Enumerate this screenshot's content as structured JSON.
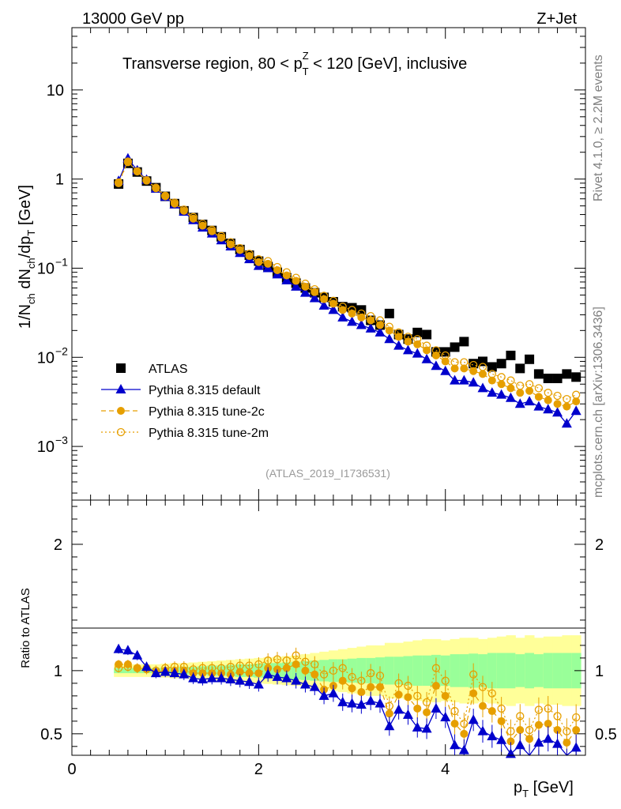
{
  "header": {
    "energy_label": "13000 GeV pp",
    "process_label": "Z+Jet",
    "plot_title": "Transverse region, 80 < p",
    "plot_title_sup": "Z",
    "plot_title_sub": "T",
    "plot_title_rest": " < 120 [GeV], inclusive"
  },
  "side_labels": {
    "rivet": "Rivet 4.1.0, ≥ 2.2M events",
    "mcplots": "mcplots.cern.ch [arXiv:1306.3436]"
  },
  "watermark": "(ATLAS_2019_I1736531)",
  "axes": {
    "ylabel_main": "1/N",
    "ylabel_main_sub1": "ch",
    "ylabel_main_mid": " dN",
    "ylabel_main_sub2": "ch",
    "ylabel_main_mid2": "/dp",
    "ylabel_main_sub3": "T",
    "ylabel_main_end": " [GeV]",
    "ylabel_ratio": "Ratio to ATLAS",
    "xlabel": "p",
    "xlabel_sub": "T",
    "xlabel_end": " [GeV]"
  },
  "colors": {
    "atlas": "#000000",
    "default": "#0000cc",
    "tune2c": "#e69f00",
    "tune2m": "#e69f00",
    "band_inner": "#99ff99",
    "band_outer": "#ffff99"
  },
  "chart_data": {
    "type": "scatter",
    "title": "Transverse region, 80 < pT(Z) < 120 [GeV], inclusive",
    "xlabel": "pT [GeV]",
    "ylabel": "1/Nch dNch/dpT [GeV]",
    "xlim": [
      0,
      5.5
    ],
    "ylim_main": [
      0.00025,
      50
    ],
    "ylim_ratio": [
      0.33,
      2.35
    ],
    "yscale_main": "log",
    "x_ticks": [
      "0",
      "2",
      "4"
    ],
    "y_ticks_main": [
      "10",
      "1",
      "10^-1",
      "10^-2",
      "10^-3"
    ],
    "y_ticks_ratio": [
      "2",
      "1",
      "0.5"
    ],
    "legend": [
      "ATLAS",
      "Pythia 8.315 default",
      "Pythia 8.315 tune-2c",
      "Pythia 8.315 tune-2m"
    ],
    "legend_placement": "bottom-left",
    "x": [
      0.5,
      0.6,
      0.7,
      0.8,
      0.9,
      1.0,
      1.1,
      1.2,
      1.3,
      1.4,
      1.5,
      1.6,
      1.7,
      1.8,
      1.9,
      2.0,
      2.1,
      2.2,
      2.3,
      2.4,
      2.5,
      2.6,
      2.7,
      2.8,
      2.9,
      3.0,
      3.1,
      3.2,
      3.3,
      3.4,
      3.5,
      3.6,
      3.7,
      3.8,
      3.9,
      4.0,
      4.1,
      4.2,
      4.3,
      4.4,
      4.5,
      4.6,
      4.7,
      4.8,
      4.9,
      5.0,
      5.1,
      5.2,
      5.3,
      5.4
    ],
    "series": [
      {
        "name": "ATLAS",
        "values": [
          0.88,
          1.5,
          1.2,
          0.95,
          0.8,
          0.64,
          0.53,
          0.44,
          0.37,
          0.31,
          0.265,
          0.225,
          0.19,
          0.162,
          0.14,
          0.12,
          0.104,
          0.09,
          0.078,
          0.068,
          0.06,
          0.053,
          0.047,
          0.042,
          0.037,
          0.036,
          0.034,
          0.026,
          0.023,
          0.031,
          0.018,
          0.016,
          0.019,
          0.018,
          0.0115,
          0.0115,
          0.013,
          0.015,
          0.0085,
          0.009,
          0.0078,
          0.0085,
          0.0105,
          0.0075,
          0.0095,
          0.0065,
          0.0058,
          0.0058,
          0.0065,
          0.006
        ]
      },
      {
        "name": "Pythia 8.315 default",
        "values": [
          0.95,
          1.7,
          1.25,
          0.98,
          0.78,
          0.63,
          0.52,
          0.43,
          0.345,
          0.285,
          0.245,
          0.205,
          0.175,
          0.148,
          0.126,
          0.106,
          0.1,
          0.085,
          0.073,
          0.062,
          0.053,
          0.046,
          0.038,
          0.034,
          0.028,
          0.025,
          0.023,
          0.021,
          0.019,
          0.016,
          0.0135,
          0.012,
          0.011,
          0.0095,
          0.008,
          0.007,
          0.0055,
          0.0055,
          0.0052,
          0.0045,
          0.004,
          0.0038,
          0.0035,
          0.003,
          0.0032,
          0.0028,
          0.0026,
          0.0024,
          0.0018,
          0.0025
        ]
      },
      {
        "name": "Pythia 8.315 tune-2c",
        "values": [
          0.92,
          1.58,
          1.22,
          0.96,
          0.79,
          0.64,
          0.53,
          0.44,
          0.36,
          0.3,
          0.26,
          0.22,
          0.185,
          0.16,
          0.137,
          0.117,
          0.112,
          0.095,
          0.083,
          0.072,
          0.062,
          0.054,
          0.045,
          0.04,
          0.034,
          0.031,
          0.028,
          0.026,
          0.023,
          0.02,
          0.017,
          0.015,
          0.014,
          0.012,
          0.0105,
          0.009,
          0.0075,
          0.0075,
          0.007,
          0.0065,
          0.0055,
          0.005,
          0.0045,
          0.004,
          0.0042,
          0.0036,
          0.0033,
          0.003,
          0.0028,
          0.0032
        ]
      },
      {
        "name": "Pythia 8.315 tune-2m",
        "values": [
          0.9,
          1.55,
          1.22,
          0.97,
          0.8,
          0.65,
          0.545,
          0.455,
          0.375,
          0.315,
          0.27,
          0.23,
          0.196,
          0.168,
          0.145,
          0.126,
          0.12,
          0.103,
          0.09,
          0.078,
          0.067,
          0.058,
          0.049,
          0.043,
          0.037,
          0.034,
          0.031,
          0.029,
          0.026,
          0.022,
          0.019,
          0.017,
          0.016,
          0.0135,
          0.012,
          0.0105,
          0.0088,
          0.0088,
          0.0082,
          0.0078,
          0.0065,
          0.006,
          0.0055,
          0.0048,
          0.005,
          0.0045,
          0.004,
          0.0037,
          0.0034,
          0.0038
        ]
      }
    ],
    "ratio": {
      "default": [
        1.17,
        1.16,
        1.12,
        1.03,
        0.98,
        0.99,
        0.98,
        0.97,
        0.94,
        0.93,
        0.94,
        0.94,
        0.93,
        0.92,
        0.91,
        0.89,
        0.97,
        0.95,
        0.94,
        0.92,
        0.89,
        0.87,
        0.8,
        0.82,
        0.75,
        0.74,
        0.73,
        0.76,
        0.74,
        0.56,
        0.69,
        0.65,
        0.55,
        0.54,
        0.7,
        0.63,
        0.41,
        0.37,
        0.61,
        0.52,
        0.48,
        0.45,
        0.34,
        0.41,
        0.32,
        0.43,
        0.46,
        0.42,
        0.28,
        0.39
      ],
      "tune2c": [
        1.05,
        1.05,
        1.02,
        1.01,
        0.99,
        1.0,
        1.0,
        1.0,
        0.98,
        0.98,
        0.98,
        0.98,
        0.97,
        0.99,
        0.98,
        0.98,
        1.02,
        1.01,
        1.02,
        1.05,
        1.0,
        0.97,
        0.85,
        0.88,
        0.92,
        0.86,
        0.83,
        0.87,
        0.87,
        0.66,
        0.81,
        0.79,
        0.7,
        0.67,
        0.88,
        0.8,
        0.58,
        0.5,
        0.82,
        0.72,
        0.68,
        0.6,
        0.44,
        0.53,
        0.46,
        0.57,
        0.58,
        0.53,
        0.43,
        0.53
      ],
      "tune2m": [
        1.02,
        1.03,
        1.02,
        1.02,
        1.0,
        1.02,
        1.03,
        1.03,
        1.01,
        1.02,
        1.02,
        1.02,
        1.03,
        1.04,
        1.04,
        1.05,
        1.08,
        1.09,
        1.08,
        1.12,
        1.07,
        1.05,
        0.97,
        1.0,
        1.02,
        0.95,
        0.92,
        0.98,
        0.96,
        0.72,
        0.9,
        0.88,
        0.8,
        0.75,
        1.02,
        0.92,
        0.68,
        0.58,
        0.97,
        0.87,
        0.82,
        0.7,
        0.52,
        0.64,
        0.53,
        0.69,
        0.7,
        0.64,
        0.52,
        0.63
      ]
    },
    "band_inner_halfwidth": [
      0.02,
      0.02,
      0.02,
      0.02,
      0.02,
      0.025,
      0.025,
      0.03,
      0.03,
      0.035,
      0.04,
      0.04,
      0.045,
      0.05,
      0.05,
      0.055,
      0.06,
      0.06,
      0.065,
      0.07,
      0.075,
      0.08,
      0.085,
      0.09,
      0.09,
      0.095,
      0.1,
      0.1,
      0.105,
      0.11,
      0.11,
      0.115,
      0.12,
      0.12,
      0.125,
      0.12,
      0.13,
      0.13,
      0.135,
      0.13,
      0.14,
      0.14,
      0.14,
      0.13,
      0.14,
      0.13,
      0.14,
      0.14,
      0.14,
      0.14
    ],
    "band_outer_halfwidth": [
      0.05,
      0.05,
      0.05,
      0.05,
      0.05,
      0.055,
      0.06,
      0.06,
      0.065,
      0.07,
      0.075,
      0.08,
      0.085,
      0.09,
      0.095,
      0.1,
      0.105,
      0.11,
      0.115,
      0.12,
      0.13,
      0.14,
      0.15,
      0.16,
      0.17,
      0.18,
      0.19,
      0.2,
      0.2,
      0.22,
      0.22,
      0.23,
      0.24,
      0.25,
      0.25,
      0.24,
      0.25,
      0.26,
      0.26,
      0.25,
      0.26,
      0.27,
      0.28,
      0.26,
      0.28,
      0.26,
      0.27,
      0.27,
      0.28,
      0.28
    ]
  }
}
